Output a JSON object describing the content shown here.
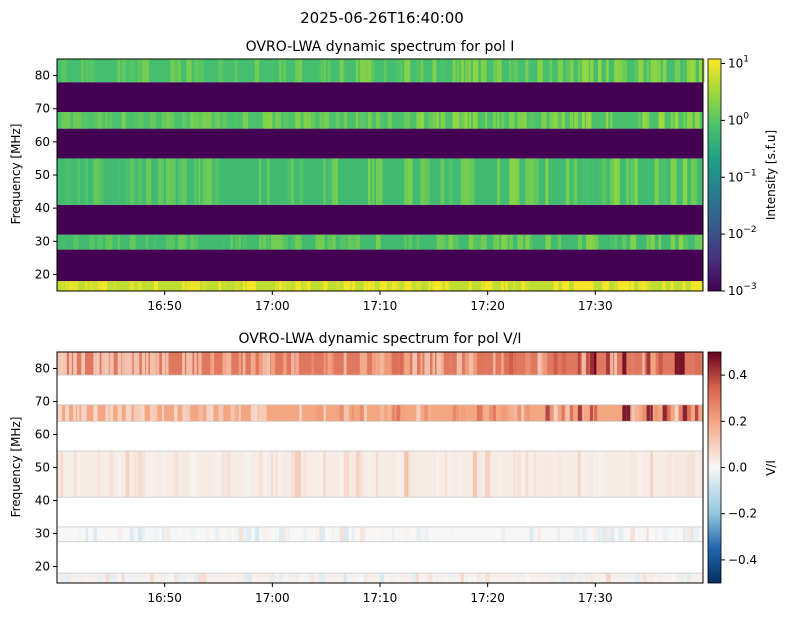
{
  "suptitle": "2025-06-26T16:40:00",
  "chart_data": [
    {
      "type": "heatmap",
      "title": "OVRO-LWA dynamic spectrum for pol I",
      "ylabel": "Frequency [MHz]",
      "x_range": [
        "16:40",
        "17:40"
      ],
      "xticks": [
        "16:50",
        "17:00",
        "17:10",
        "17:20",
        "17:30"
      ],
      "ylim": [
        15,
        85
      ],
      "yticks": [
        20,
        30,
        40,
        50,
        60,
        70,
        80
      ],
      "colorbar": {
        "label": "Intensity [s.f.u]",
        "scale": "log",
        "range": [
          0.001,
          12
        ],
        "ticks": [
          "10^1",
          "10^0",
          "10^-1",
          "10^-2",
          "10^-3"
        ],
        "colormap": "viridis"
      },
      "bands": [
        {
          "fmin": 15.0,
          "fmax": 18.0,
          "level": 5.0,
          "flagged": false
        },
        {
          "fmin": 18.0,
          "fmax": 27.5,
          "level": 0.001,
          "flagged": true
        },
        {
          "fmin": 27.5,
          "fmax": 32.0,
          "level": 0.6,
          "flagged": false
        },
        {
          "fmin": 32.0,
          "fmax": 41.0,
          "level": 0.001,
          "flagged": true
        },
        {
          "fmin": 41.0,
          "fmax": 55.0,
          "level": 0.6,
          "flagged": false
        },
        {
          "fmin": 55.0,
          "fmax": 64.0,
          "level": 0.001,
          "flagged": true
        },
        {
          "fmin": 64.0,
          "fmax": 69.0,
          "level": 0.8,
          "flagged": false
        },
        {
          "fmin": 69.0,
          "fmax": 78.0,
          "level": 0.001,
          "flagged": true
        },
        {
          "fmin": 78.0,
          "fmax": 85.0,
          "level": 0.7,
          "flagged": false
        }
      ]
    },
    {
      "type": "heatmap",
      "title": "OVRO-LWA dynamic spectrum for pol V/I",
      "ylabel": "Frequency [MHz]",
      "x_range": [
        "16:40",
        "17:40"
      ],
      "xticks": [
        "16:50",
        "17:00",
        "17:10",
        "17:20",
        "17:30"
      ],
      "ylim": [
        15,
        85
      ],
      "yticks": [
        20,
        30,
        40,
        50,
        60,
        70,
        80
      ],
      "colorbar": {
        "label": "V/I",
        "scale": "linear",
        "range": [
          -0.5,
          0.5
        ],
        "ticks": [
          "0.4",
          "0.2",
          "0.0",
          "−0.2",
          "−0.4"
        ],
        "colormap": "RdBu_r"
      },
      "bands": [
        {
          "fmin": 15.0,
          "fmax": 18.0,
          "level": 0.02,
          "flagged": false
        },
        {
          "fmin": 27.5,
          "fmax": 32.0,
          "level": 0.0,
          "flagged": false
        },
        {
          "fmin": 41.0,
          "fmax": 55.0,
          "level": 0.03,
          "flagged": false
        },
        {
          "fmin": 64.0,
          "fmax": 69.0,
          "level": 0.2,
          "flagged": false
        },
        {
          "fmin": 78.0,
          "fmax": 85.0,
          "level": 0.3,
          "flagged": false
        }
      ]
    }
  ]
}
